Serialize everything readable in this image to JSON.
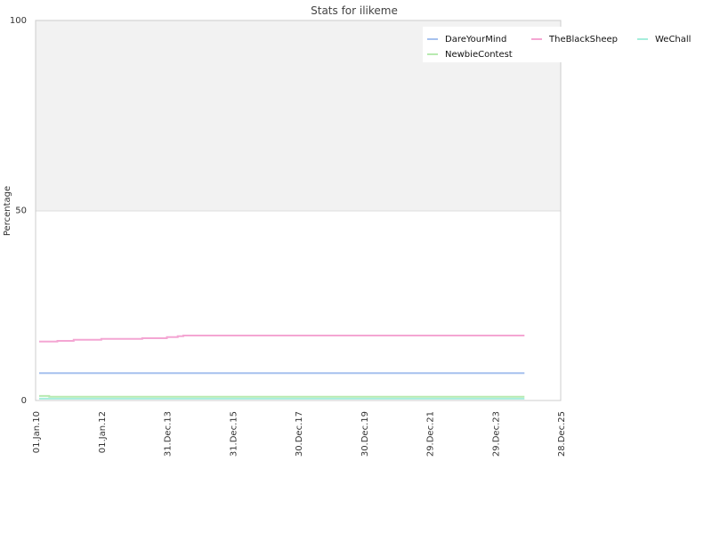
{
  "chart_data": {
    "type": "line",
    "title": "Stats for ilikeme",
    "ylabel": "Percentage",
    "xlabel": "",
    "ylim": [
      0,
      100
    ],
    "yticks": [
      0,
      50,
      100
    ],
    "x_ticks": [
      "01.Jan.10",
      "01.Jan.12",
      "31.Dec.13",
      "31.Dec.15",
      "30.Dec.17",
      "30.Dec.19",
      "29.Dec.21",
      "29.Dec.23",
      "28.Dec.25"
    ],
    "xlim": [
      "2010-01-01",
      "2025-12-28"
    ],
    "grid": "horizontal bands",
    "legend_position": "top-right",
    "series": [
      {
        "name": "DareYourMind",
        "color": "#a6c1ee",
        "points": [
          [
            "2010-02-10",
            7.2
          ],
          [
            "2024-11-20",
            7.2
          ]
        ]
      },
      {
        "name": "TheBlackSheep",
        "color": "#f4a6d3",
        "points": [
          [
            "2010-02-10",
            15.5
          ],
          [
            "2010-09-01",
            15.5
          ],
          [
            "2010-09-01",
            15.7
          ],
          [
            "2011-03-01",
            15.7
          ],
          [
            "2011-03-01",
            16.0
          ],
          [
            "2012-01-01",
            16.0
          ],
          [
            "2012-01-01",
            16.2
          ],
          [
            "2013-04-01",
            16.2
          ],
          [
            "2013-04-01",
            16.4
          ],
          [
            "2013-12-31",
            16.4
          ],
          [
            "2013-12-31",
            16.7
          ],
          [
            "2014-05-01",
            16.7
          ],
          [
            "2014-05-01",
            16.9
          ],
          [
            "2014-07-01",
            16.9
          ],
          [
            "2014-07-01",
            17.1
          ],
          [
            "2024-11-20",
            17.1
          ]
        ]
      },
      {
        "name": "WeChall",
        "color": "#a6eedc",
        "points": [
          [
            "2010-02-10",
            0.5
          ],
          [
            "2024-11-20",
            0.5
          ]
        ]
      },
      {
        "name": "NewbieContest",
        "color": "#b8eab0",
        "points": [
          [
            "2010-02-10",
            1.2
          ],
          [
            "2010-06-01",
            1.2
          ],
          [
            "2010-06-01",
            1.0
          ],
          [
            "2024-11-20",
            1.0
          ]
        ]
      }
    ]
  }
}
